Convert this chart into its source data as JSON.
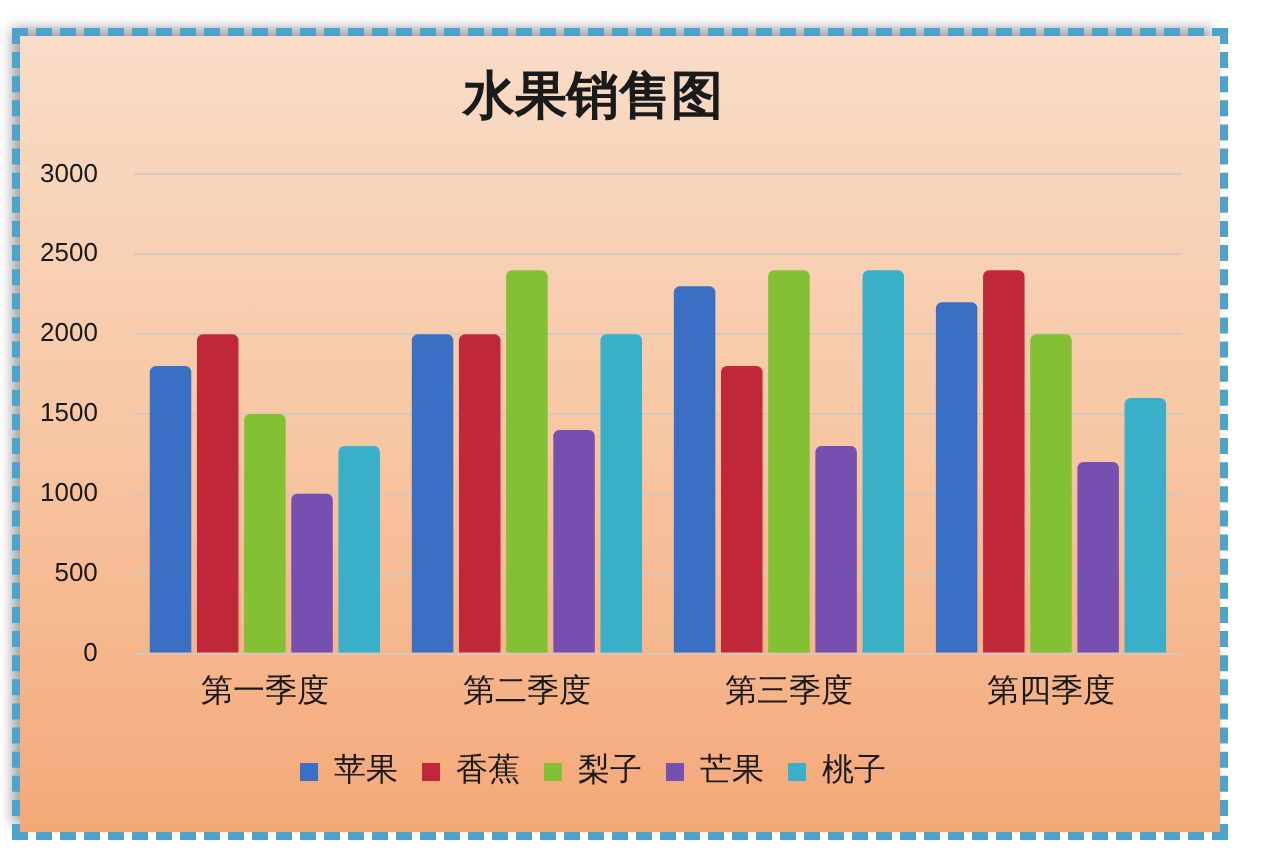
{
  "chart_data": {
    "type": "bar",
    "title": "水果销售图",
    "categories": [
      "第一季度",
      "第二季度",
      "第三季度",
      "第四季度"
    ],
    "series": [
      {
        "name": "苹果",
        "color": "#3a6fc4",
        "values": [
          1800,
          2000,
          2300,
          2200
        ]
      },
      {
        "name": "香蕉",
        "color": "#c0283a",
        "values": [
          2000,
          2000,
          1800,
          2400
        ]
      },
      {
        "name": "梨子",
        "color": "#84c034",
        "values": [
          1500,
          2400,
          2400,
          2000
        ]
      },
      {
        "name": "芒果",
        "color": "#7650b0",
        "values": [
          1000,
          1400,
          1300,
          1200
        ]
      },
      {
        "name": "桃子",
        "color": "#3ab0c8",
        "values": [
          1300,
          2000,
          2400,
          1600
        ]
      }
    ],
    "ylim": [
      0,
      3000
    ],
    "yticks": [
      0,
      500,
      1000,
      1500,
      2000,
      2500,
      3000
    ],
    "grid": "y",
    "legend": "bottom"
  }
}
